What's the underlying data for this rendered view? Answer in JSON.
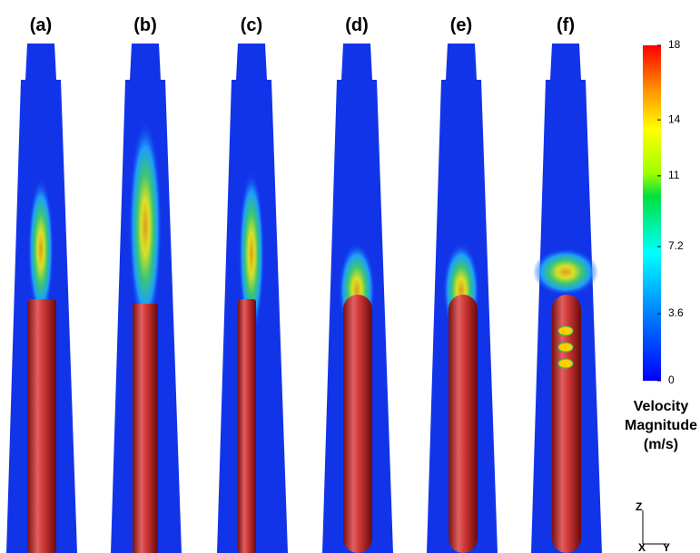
{
  "panels": [
    "(a)",
    "(b)",
    "(c)",
    "(d)",
    "(e)",
    "(f)"
  ],
  "colorbar": {
    "range": [
      0,
      18
    ],
    "ticks": [
      0,
      3.6,
      7.2,
      11,
      14,
      18
    ],
    "title": [
      "Velocity",
      "Magnitude",
      "(m/s)"
    ]
  },
  "axes": {
    "vertical": "Z",
    "depth": "X",
    "horizontal": "Y"
  }
}
